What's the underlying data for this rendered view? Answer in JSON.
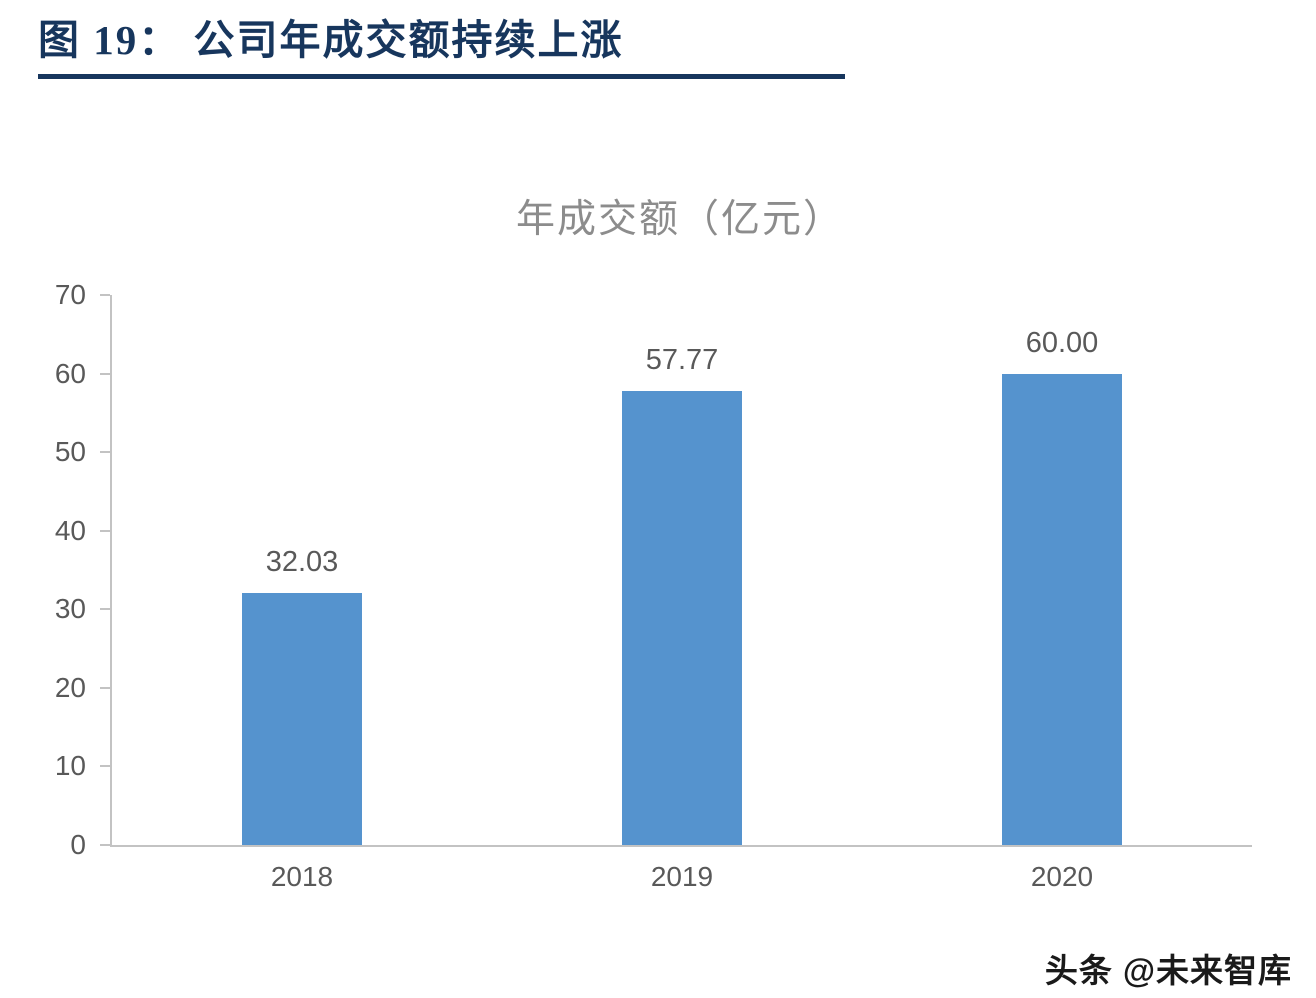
{
  "header": {
    "title": "图 19： 公司年成交额持续上涨"
  },
  "chart_data": {
    "type": "bar",
    "title": "年成交额（亿元）",
    "categories": [
      "2018",
      "2019",
      "2020"
    ],
    "values": [
      32.03,
      57.77,
      60.0
    ],
    "value_labels": [
      "32.03",
      "57.77",
      "60.00"
    ],
    "ylim": [
      0,
      70
    ],
    "yticks": [
      0,
      10,
      20,
      30,
      40,
      50,
      60,
      70
    ],
    "bar_color": "#5593ce",
    "grid": false,
    "legend": "none",
    "xlabel": "",
    "ylabel": ""
  },
  "footer": {
    "logo_text": "头条",
    "handle": "@未来智库"
  },
  "colors": {
    "heading": "#17365d",
    "bar": "#5593ce",
    "axis": "#c3c3c3",
    "tick_text": "#595959",
    "chart_title_text": "#8c8c8c"
  }
}
